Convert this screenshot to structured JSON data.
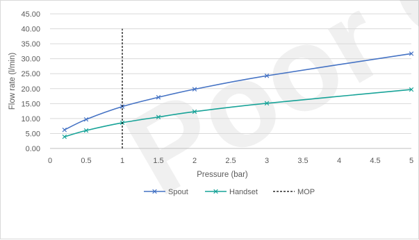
{
  "chart_data": {
    "type": "line",
    "title": "",
    "xlabel": "Pressure (bar)",
    "ylabel": "Flow rate (l/min)",
    "xlim": [
      0,
      5
    ],
    "ylim": [
      0,
      45
    ],
    "x_ticks": [
      "0",
      "0.5",
      "1",
      "1.5",
      "2",
      "2.5",
      "3",
      "3.5",
      "4",
      "4.5",
      "5"
    ],
    "y_ticks": [
      "0.00",
      "5.00",
      "10.00",
      "15.00",
      "20.00",
      "25.00",
      "30.00",
      "35.00",
      "40.00",
      "45.00"
    ],
    "grid": "horizontal",
    "legend_position": "bottom",
    "series": [
      {
        "name": "Spout",
        "color": "#4472c4",
        "marker": "x",
        "x": [
          0.2,
          0.5,
          1,
          1.5,
          2,
          3,
          5
        ],
        "y": [
          6.2,
          9.7,
          14.0,
          17.1,
          19.8,
          24.3,
          31.7
        ]
      },
      {
        "name": "Handset",
        "color": "#17a398",
        "marker": "x",
        "x": [
          0.2,
          0.5,
          1,
          1.5,
          2,
          3,
          5
        ],
        "y": [
          3.9,
          6.0,
          8.6,
          10.5,
          12.3,
          15.1,
          19.7
        ]
      },
      {
        "name": "MOP",
        "color": "#000000",
        "style": "dashed",
        "x": [
          1,
          1
        ],
        "y": [
          0,
          40
        ]
      }
    ]
  },
  "watermark": {
    "text": "Poor C"
  }
}
